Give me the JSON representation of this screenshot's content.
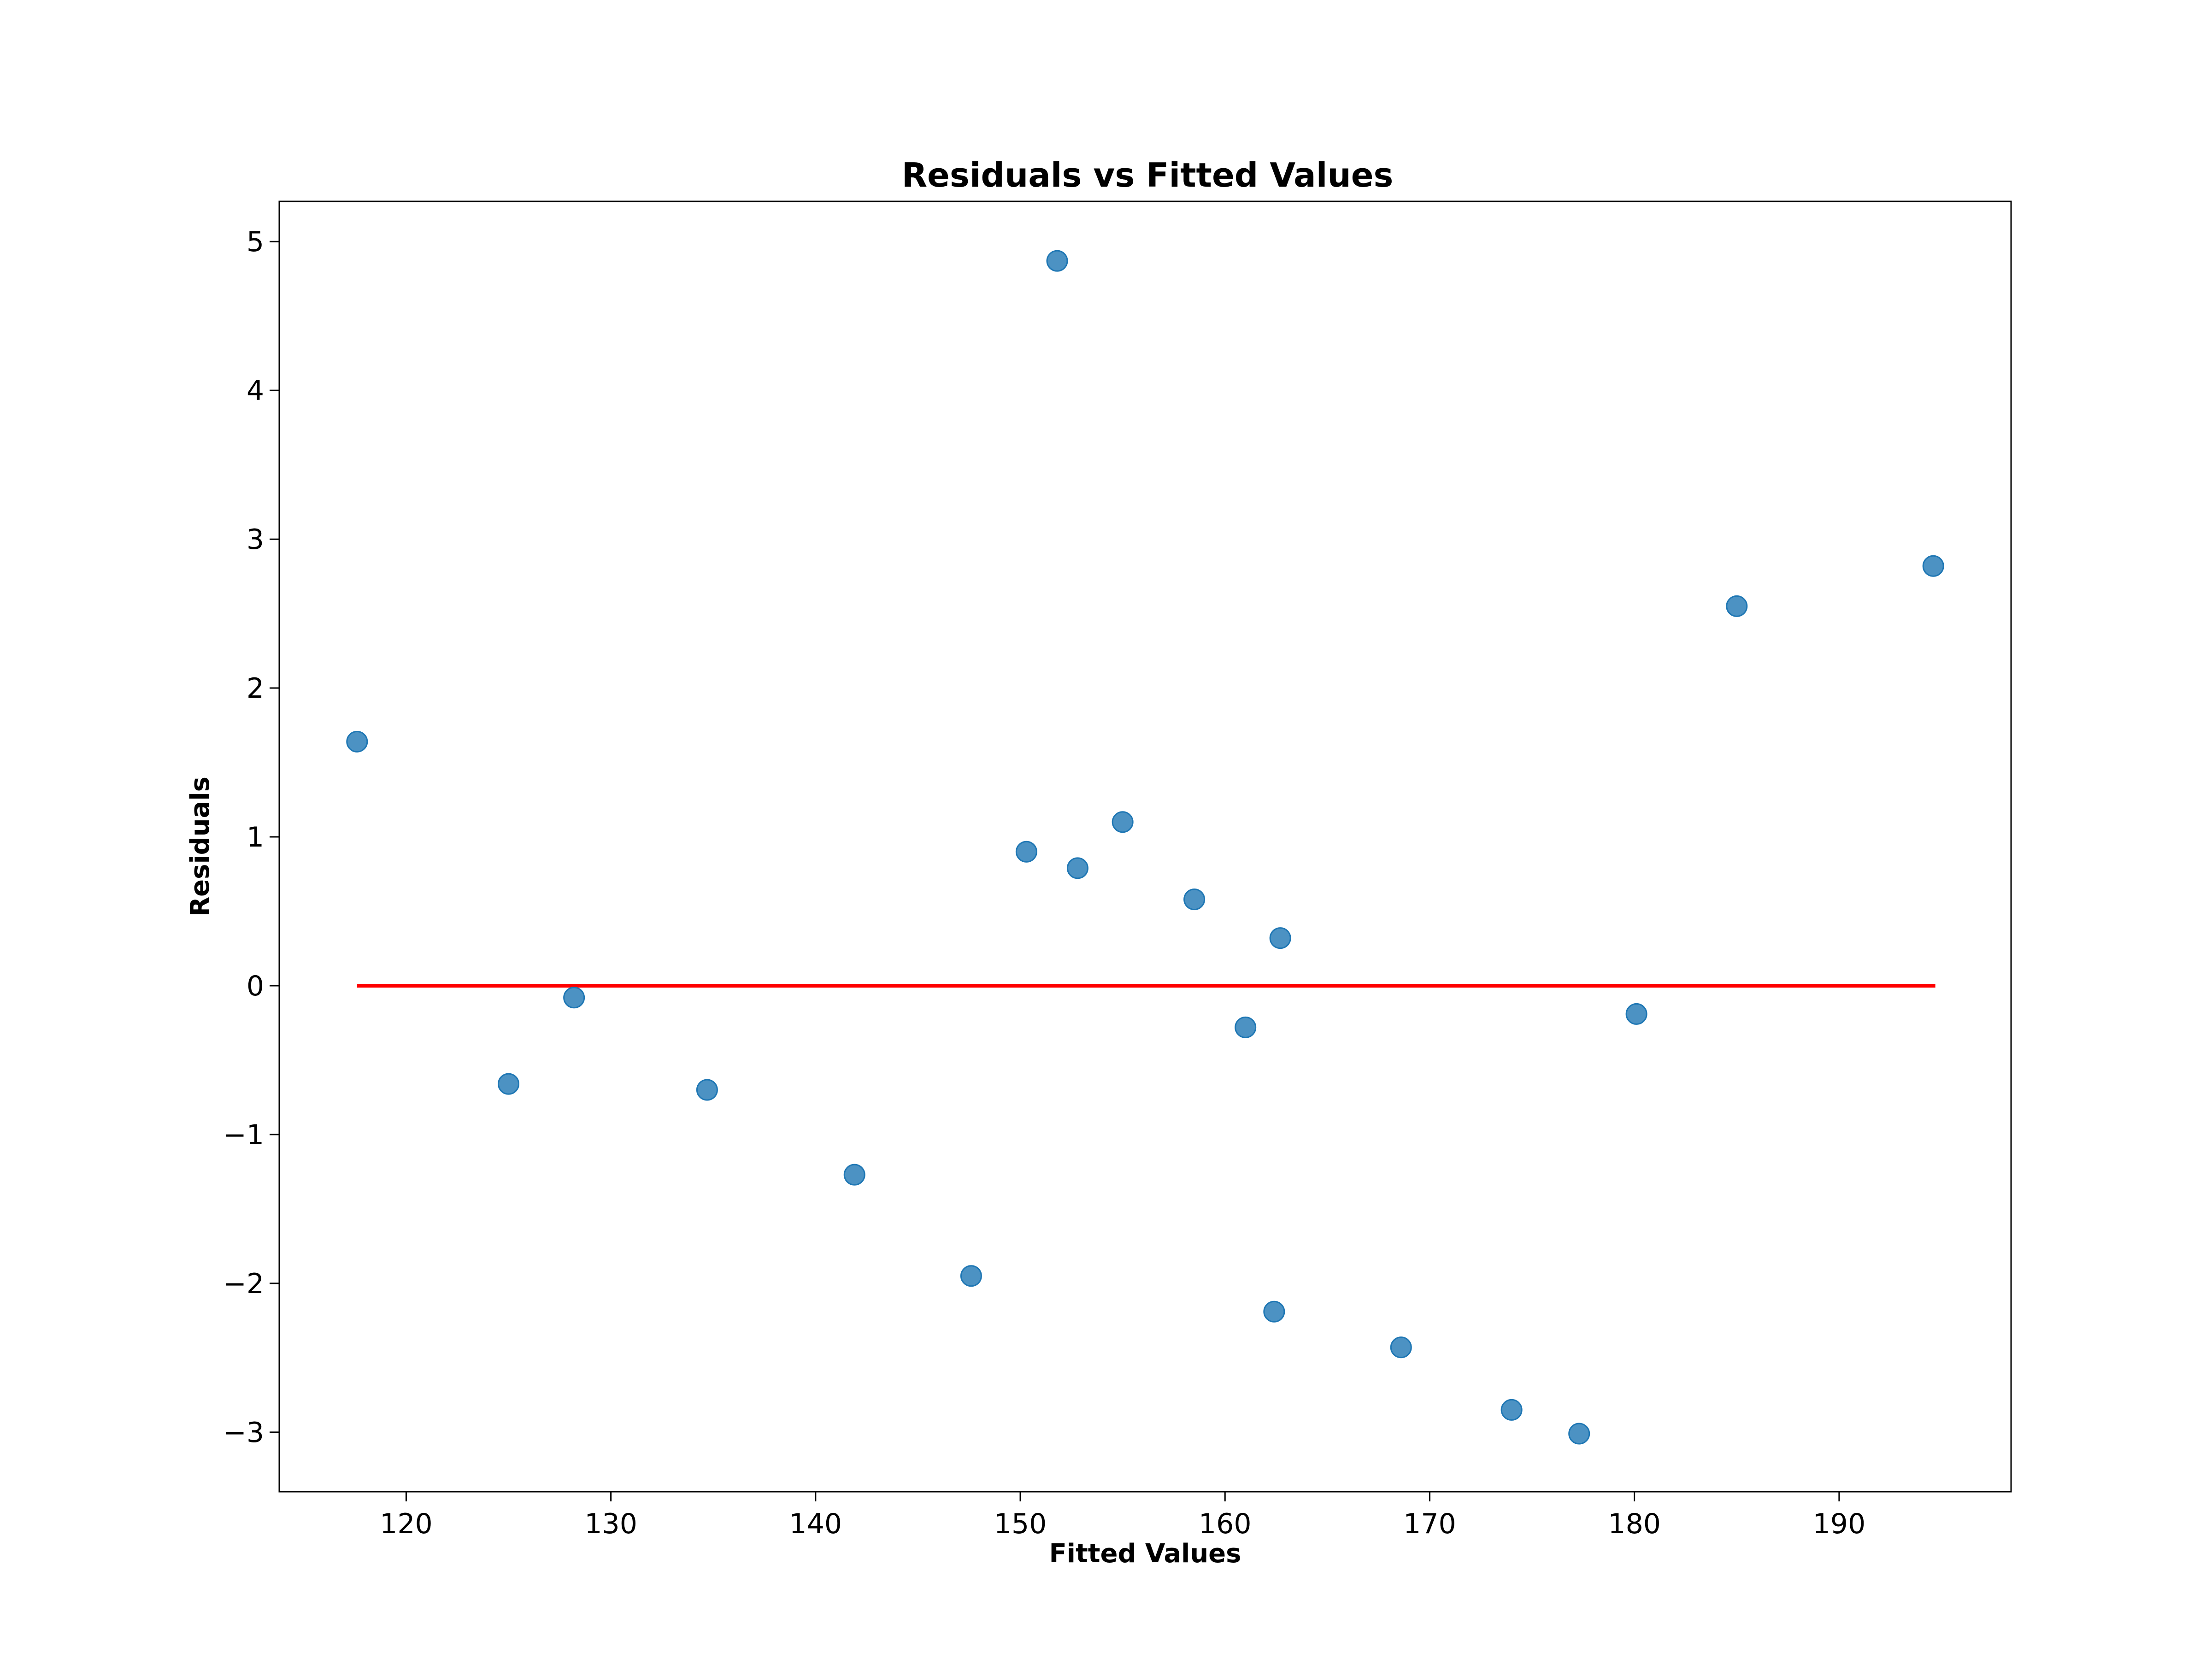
{
  "chart_data": {
    "type": "scatter",
    "title": "Residuals vs Fitted Values",
    "xlabel": "Fitted Values",
    "ylabel": "Residuals",
    "xlim": [
      113.8,
      198.4
    ],
    "ylim": [
      -3.4,
      5.27
    ],
    "x_ticks": [
      120,
      130,
      140,
      150,
      160,
      170,
      180,
      190
    ],
    "x_tick_labels": [
      "120",
      "130",
      "140",
      "150",
      "160",
      "170",
      "180",
      "190"
    ],
    "y_ticks": [
      -3,
      -2,
      -1,
      0,
      1,
      2,
      3,
      4,
      5
    ],
    "y_tick_labels": [
      "−3",
      "−2",
      "−1",
      "0",
      "1",
      "2",
      "3",
      "4",
      "5"
    ],
    "grid": false,
    "point_color": "#1f77b4",
    "reference_line": {
      "y": 0,
      "x_start": 117.6,
      "x_end": 194.7,
      "color": "#ff0000"
    },
    "series": [
      {
        "points": [
          {
            "x": 117.6,
            "y": 1.64
          },
          {
            "x": 125.0,
            "y": -0.66
          },
          {
            "x": 128.2,
            "y": -0.08
          },
          {
            "x": 134.7,
            "y": -0.7
          },
          {
            "x": 141.9,
            "y": -1.27
          },
          {
            "x": 147.6,
            "y": -1.95
          },
          {
            "x": 150.3,
            "y": 0.9
          },
          {
            "x": 151.8,
            "y": 4.87
          },
          {
            "x": 152.8,
            "y": 0.79
          },
          {
            "x": 155.0,
            "y": 1.1
          },
          {
            "x": 158.5,
            "y": 0.58
          },
          {
            "x": 161.0,
            "y": -0.28
          },
          {
            "x": 162.4,
            "y": -2.19
          },
          {
            "x": 162.7,
            "y": 0.32
          },
          {
            "x": 168.6,
            "y": -2.43
          },
          {
            "x": 174.0,
            "y": -2.85
          },
          {
            "x": 177.3,
            "y": -3.01
          },
          {
            "x": 180.1,
            "y": -0.19
          },
          {
            "x": 185.0,
            "y": 2.55
          },
          {
            "x": 194.6,
            "y": 2.82
          }
        ]
      }
    ]
  }
}
